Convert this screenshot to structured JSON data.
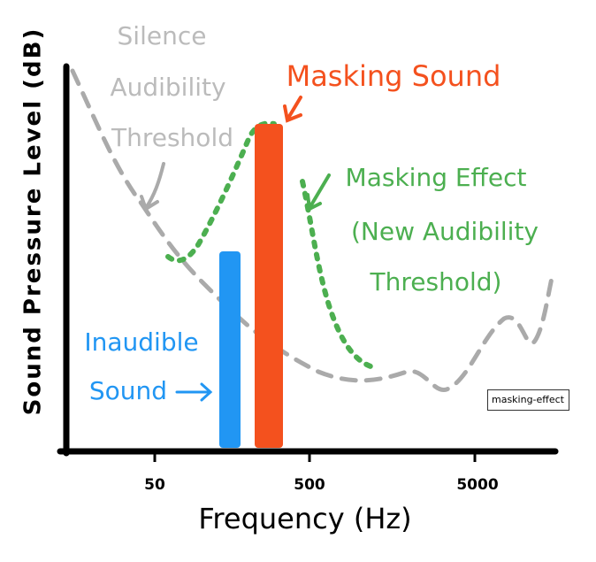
{
  "axes": {
    "y_label": "Sound Pressure Level (dB)",
    "x_label": "Frequency (Hz)",
    "x_ticks": [
      "50",
      "500",
      "5000"
    ]
  },
  "labels": {
    "silence_threshold": [
      "Silence",
      "Audibility",
      "Threshold"
    ],
    "masking_sound": "Masking Sound",
    "masking_effect": [
      "Masking Effect",
      "(New Audibility",
      "Threshold)"
    ],
    "inaudible_sound": [
      "Inaudible",
      "Sound"
    ]
  },
  "caption": "masking-effect"
}
